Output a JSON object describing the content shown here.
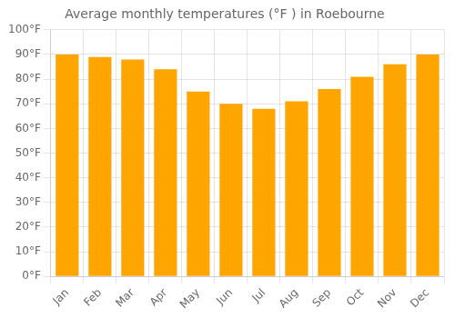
{
  "chart_data": {
    "type": "bar",
    "title": "Average monthly temperatures (°F ) in Roebourne",
    "categories": [
      "Jan",
      "Feb",
      "Mar",
      "Apr",
      "May",
      "Jun",
      "Jul",
      "Aug",
      "Sep",
      "Oct",
      "Nov",
      "Dec"
    ],
    "values": [
      90,
      89,
      88,
      84,
      75,
      70,
      68,
      71,
      76,
      81,
      86,
      90
    ],
    "color": "#FFA500",
    "ylim": [
      0,
      100
    ],
    "yticks": [
      {
        "value": 0,
        "label": "0°F"
      },
      {
        "value": 10,
        "label": "10°F"
      },
      {
        "value": 20,
        "label": "20°F"
      },
      {
        "value": 30,
        "label": "30°F"
      },
      {
        "value": 40,
        "label": "40°F"
      },
      {
        "value": 50,
        "label": "50°F"
      },
      {
        "value": 60,
        "label": "60°F"
      },
      {
        "value": 70,
        "label": "70°F"
      },
      {
        "value": 80,
        "label": "80°F"
      },
      {
        "value": 90,
        "label": "90°F"
      },
      {
        "value": 100,
        "label": "100°F"
      }
    ],
    "grid": true
  }
}
